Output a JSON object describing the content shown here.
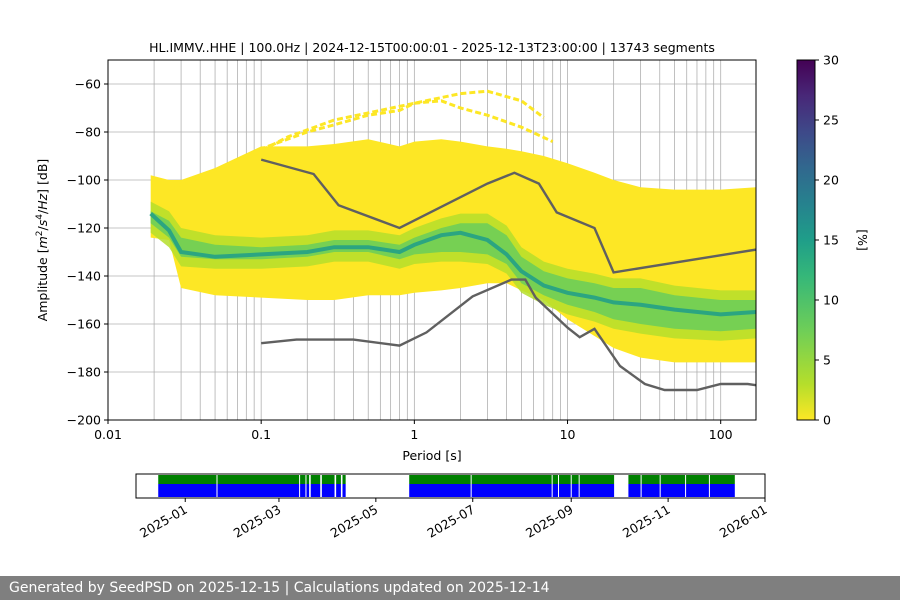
{
  "chart_data": [
    {
      "type": "heatmap",
      "title": "HL.IMMV..HHE | 100.0Hz | 2024-12-15T00:00:01 - 2025-12-13T23:00:00 | 13743 segments",
      "xlabel": "Period [s]",
      "ylabel_parts": [
        "Amplitude [",
        "m",
        "2",
        "/",
        "s",
        "4",
        "/",
        "Hz",
        "] [dB]"
      ],
      "x_scale": "log",
      "xlim": [
        0.01,
        170
      ],
      "ylim": [
        -200,
        -50
      ],
      "x_ticks": [
        0.01,
        0.1,
        1,
        10,
        100
      ],
      "x_tick_labels": [
        "0.01",
        "0.1",
        "1",
        "10",
        "100"
      ],
      "y_ticks": [
        -200,
        -180,
        -160,
        -140,
        -120,
        -100,
        -80,
        -60
      ],
      "y_tick_labels": [
        "−200",
        "−180",
        "−160",
        "−140",
        "−120",
        "−100",
        "−80",
        "−60"
      ],
      "grid": true,
      "colorbar": {
        "label": "[%]",
        "range": [
          0,
          30
        ],
        "ticks": [
          0,
          5,
          10,
          15,
          20,
          25,
          30
        ],
        "tick_labels": [
          "0",
          "5",
          "10",
          "15",
          "20",
          "25",
          "30"
        ],
        "colormap": "viridis"
      },
      "density_band": {
        "period": [
          0.019,
          0.025,
          0.03,
          0.05,
          0.1,
          0.2,
          0.3,
          0.5,
          0.8,
          1.0,
          1.5,
          2.0,
          3.0,
          4.0,
          5.0,
          7.0,
          10.0,
          15.0,
          20.0,
          30.0,
          50.0,
          100.0,
          170.0
        ],
        "outer_upper_db": [
          -98,
          -100,
          -100,
          -95,
          -86,
          -86,
          -85,
          -83,
          -86,
          -84,
          -83,
          -84,
          -86,
          -87,
          -88,
          -90,
          -93,
          -97,
          -100,
          -103,
          -104,
          -104,
          -103
        ],
        "outer_lower_db": [
          -124,
          -125,
          -145,
          -148,
          -149,
          -150,
          -150,
          -148,
          -148,
          -147,
          -146,
          -145,
          -143,
          -143,
          -146,
          -150,
          -158,
          -165,
          -170,
          -174,
          -176,
          -176,
          -176
        ],
        "core_upper_db": [
          -113,
          -117,
          -124,
          -127,
          -128,
          -127,
          -125,
          -125,
          -127,
          -124,
          -120,
          -118,
          -118,
          -123,
          -132,
          -138,
          -141,
          -143,
          -145,
          -145,
          -148,
          -150,
          -150
        ],
        "core_lower_db": [
          -118,
          -124,
          -132,
          -133,
          -133,
          -132,
          -130,
          -130,
          -133,
          -131,
          -130,
          -130,
          -131,
          -135,
          -143,
          -148,
          -152,
          -155,
          -158,
          -160,
          -162,
          -163,
          -162
        ],
        "mode_db": [
          -114,
          -121,
          -130,
          -132,
          -131,
          -130,
          -128,
          -128,
          -130,
          -127,
          -123,
          -122,
          -125,
          -131,
          -138,
          -144,
          -147,
          -149,
          -151,
          -152,
          -154,
          -156,
          -155
        ]
      },
      "sparse_upper_ridges": [
        {
          "period": [
            0.025,
            0.05,
            0.1,
            0.2,
            0.3,
            0.5,
            0.8,
            1.0,
            1.5,
            2.0,
            3.0,
            5.0,
            8.0
          ],
          "db": [
            -104,
            -96,
            -87,
            -80,
            -77,
            -73,
            -71,
            -68,
            -67,
            -70,
            -73,
            -78,
            -84
          ]
        },
        {
          "period": [
            0.08,
            0.15,
            0.3,
            0.6,
            1.0,
            2.0,
            3.0,
            5.0,
            7.0
          ],
          "db": [
            -91,
            -82,
            -75,
            -71,
            -68,
            -64,
            -63,
            -67,
            -74
          ]
        }
      ],
      "series": [
        {
          "name": "",
          "x": [
            0.1,
            0.22,
            0.32,
            0.8,
            3.0,
            4.5,
            6.5,
            8.5,
            15.0,
            20.0,
            170.0
          ],
          "y": [
            -91.5,
            -97.5,
            -110.5,
            -120,
            -101.5,
            -97,
            -101.5,
            -113.5,
            -120,
            -138.5,
            -129
          ]
        },
        {
          "name": "",
          "x": [
            0.1,
            0.17,
            0.4,
            0.8,
            1.2,
            2.4,
            4.3,
            5.3,
            6.2,
            10.0,
            12.0,
            15.0,
            22.0,
            32.0,
            43.0,
            70.0,
            100.0,
            150.0,
            170.0
          ],
          "y": [
            -168,
            -166.5,
            -166.5,
            -169,
            -163.5,
            -148.5,
            -141.5,
            -141.5,
            -149,
            -161.5,
            -165.5,
            -162,
            -177.5,
            -185,
            -187.5,
            -187.5,
            -185,
            -185,
            -185.5
          ]
        }
      ],
      "vertical_period_gridlines": [
        0.02,
        0.03,
        0.04,
        0.05,
        0.06,
        0.07,
        0.08,
        0.09,
        0.2,
        0.3,
        0.4,
        0.5,
        0.6,
        0.7,
        0.8,
        0.9,
        2,
        3,
        4,
        5,
        6,
        7,
        8,
        9,
        20,
        30,
        40,
        50,
        60,
        70,
        80,
        90
      ]
    },
    {
      "type": "timeline",
      "xlim": [
        "2024-12-01",
        "2026-01-01"
      ],
      "x_tick_labels": [
        "2025-01",
        "2025-03",
        "2025-05",
        "2025-07",
        "2025-09",
        "2025-11",
        "2026-01"
      ],
      "x_tick_dates": [
        "2025-01-01",
        "2025-03-01",
        "2025-05-01",
        "2025-07-01",
        "2025-09-01",
        "2025-11-01",
        "2026-01-01"
      ],
      "coverage_colors": {
        "top": "#008000",
        "bottom": "#0000ff"
      },
      "coverage_intervals": [
        [
          "2024-12-15",
          "2025-03-20"
        ],
        [
          "2025-03-21",
          "2025-03-27"
        ],
        [
          "2025-03-28",
          "2025-04-05"
        ],
        [
          "2025-04-06",
          "2025-04-09"
        ],
        [
          "2025-04-10",
          "2025-04-12"
        ],
        [
          "2025-05-22",
          "2025-09-28"
        ],
        [
          "2025-10-07",
          "2025-12-13"
        ]
      ],
      "coverage_gaps": [
        "2025-01-21",
        "2025-03-14",
        "2025-03-18",
        "2025-06-30",
        "2025-08-20",
        "2025-08-24",
        "2025-09-01",
        "2025-09-06",
        "2025-10-15",
        "2025-10-27",
        "2025-11-12",
        "2025-11-27"
      ]
    }
  ],
  "footer_text": "Generated by SeedPSD on 2025-12-15 | Calculations updated on 2025-12-14"
}
